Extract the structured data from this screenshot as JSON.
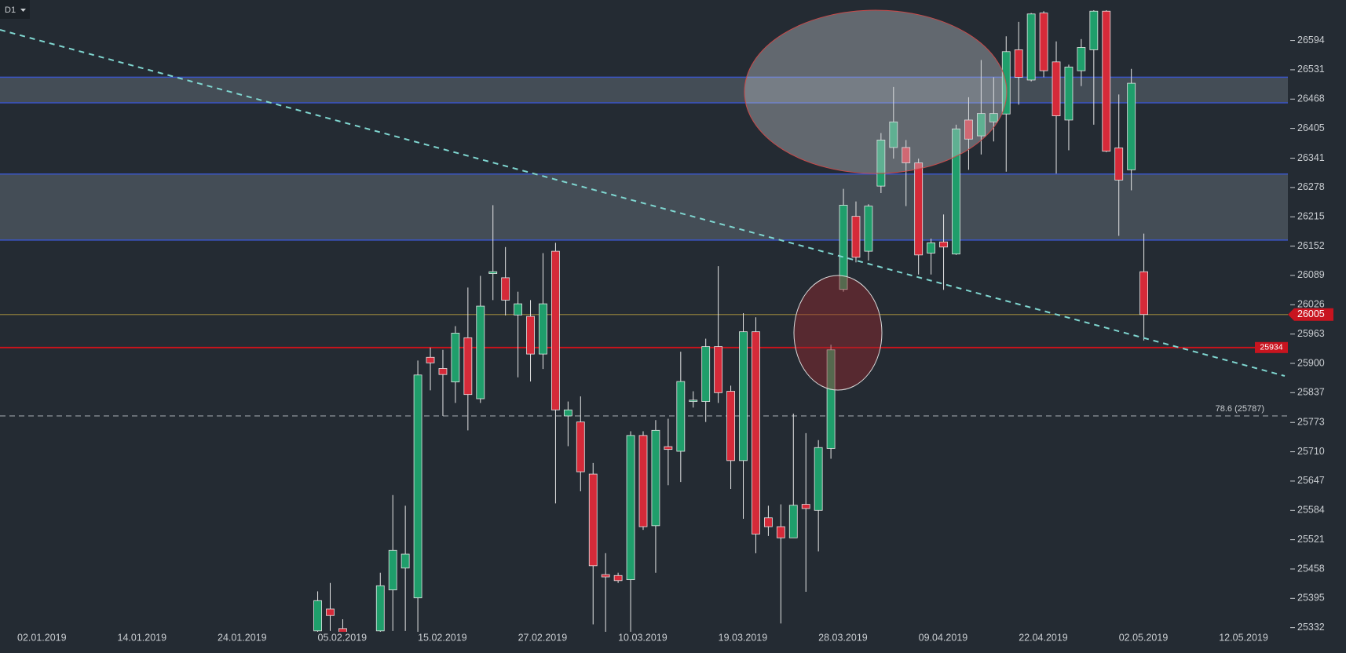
{
  "timeframe": "D1",
  "chart_data": {
    "type": "candlestick",
    "categories": [
      "02.01.2019",
      null,
      null,
      null,
      null,
      null,
      null,
      null,
      "14.01.2019",
      null,
      null,
      null,
      null,
      null,
      null,
      null,
      "24.01.2019",
      null,
      null,
      null,
      null,
      null,
      null,
      null,
      "05.02.2019",
      null,
      null,
      null,
      null,
      null,
      null,
      null,
      "15.02.2019",
      null,
      null,
      null,
      null,
      null,
      null,
      null,
      "27.02.2019",
      null,
      null,
      null,
      null,
      null,
      null,
      null,
      "10.03.2019",
      null,
      null,
      null,
      null,
      null,
      null,
      null,
      "19.03.2019",
      null,
      null,
      null,
      null,
      null,
      null,
      null,
      "28.03.2019",
      null,
      null,
      null,
      null,
      null,
      null,
      null,
      "09.04.2019",
      null,
      null,
      null,
      null,
      null,
      null,
      null,
      "22.04.2019",
      null,
      null,
      null,
      null,
      null,
      null,
      null,
      "02.05.2019",
      null,
      null,
      null,
      null,
      null,
      null,
      null,
      "12.05.2019"
    ],
    "open": [
      null,
      null,
      null,
      null,
      null,
      null,
      null,
      null,
      null,
      null,
      null,
      null,
      null,
      null,
      null,
      null,
      null,
      null,
      null,
      null,
      null,
      null,
      null,
      null,
      25325,
      25372,
      25330,
      null,
      null,
      25325,
      25413,
      25460,
      25396,
      25913,
      25889,
      25860,
      25955,
      25824,
      26093,
      26084,
      26004,
      26001,
      25920,
      26141,
      25787,
      25774,
      25662,
      25446,
      25444,
      25435,
      25745,
      25551,
      25721,
      25711,
      25818,
      25818,
      25936,
      25840,
      25691,
      25968,
      25568,
      25549,
      25525,
      25597,
      25584,
      25717,
      26059,
      26216,
      26141,
      26281,
      26364,
      26364,
      26331,
      26137,
      26161,
      26135,
      26423,
      26389,
      26419,
      26436,
      26574,
      26509,
      26653,
      26548,
      26423,
      26529,
      26574,
      26657,
      26363,
      26316,
      26097,
      null,
      null,
      null,
      null,
      null,
      null
    ],
    "high": [
      null,
      null,
      null,
      null,
      null,
      null,
      null,
      null,
      null,
      null,
      null,
      null,
      null,
      null,
      null,
      null,
      null,
      null,
      null,
      null,
      null,
      null,
      null,
      null,
      25410,
      25428,
      25350,
      null,
      null,
      25450,
      25617,
      25594,
      25906,
      25934,
      25929,
      25980,
      26063,
      26088,
      26240,
      26150,
      26054,
      26036,
      26137,
      26159,
      25818,
      25829,
      25686,
      25492,
      25450,
      25754,
      25754,
      25778,
      25781,
      25925,
      25840,
      25953,
      26109,
      25852,
      26008,
      25999,
      25594,
      25597,
      25792,
      25750,
      25735,
      25940,
      26275,
      26248,
      26242,
      26395,
      26494,
      26380,
      26340,
      26168,
      26220,
      26413,
      26472,
      26552,
      26515,
      26603,
      26634,
      26653,
      26657,
      26592,
      26542,
      26597,
      26659,
      26659,
      26478,
      26533,
      26179,
      null,
      null,
      null,
      null,
      null,
      null
    ],
    "low": [
      null,
      null,
      null,
      null,
      null,
      null,
      null,
      null,
      null,
      null,
      null,
      null,
      null,
      null,
      null,
      null,
      null,
      null,
      null,
      null,
      null,
      null,
      null,
      null,
      25310,
      25325,
      25315,
      null,
      null,
      25310,
      25325,
      25325,
      25318,
      25842,
      25787,
      25815,
      25756,
      25815,
      26036,
      26003,
      25870,
      25861,
      25888,
      25599,
      25722,
      25625,
      25339,
      25320,
      25428,
      25320,
      25542,
      25450,
      25638,
      25645,
      25805,
      25774,
      25815,
      25630,
      25566,
      25492,
      25529,
      25341,
      25525,
      25409,
      25496,
      25695,
      26054,
      26117,
      26121,
      26266,
      26340,
      26238,
      26091,
      26091,
      26058,
      26133,
      26316,
      26349,
      26377,
      26312,
      26456,
      26506,
      26515,
      26308,
      26358,
      26496,
      26413,
      26354,
      26174,
      26272,
      25949,
      null,
      null,
      null,
      null,
      null,
      null
    ],
    "close": [
      null,
      null,
      null,
      null,
      null,
      null,
      null,
      null,
      null,
      null,
      null,
      null,
      null,
      null,
      null,
      null,
      null,
      null,
      null,
      null,
      null,
      null,
      null,
      null,
      25390,
      25358,
      25322,
      null,
      null,
      25422,
      25498,
      25490,
      25875,
      25901,
      25876,
      25965,
      25833,
      26023,
      26097,
      26036,
      26028,
      25920,
      26028,
      25800,
      25800,
      25667,
      25465,
      25441,
      25433,
      25745,
      25549,
      25756,
      25715,
      25861,
      25821,
      25936,
      25837,
      25691,
      25968,
      25533,
      25549,
      25525,
      25595,
      25588,
      25719,
      25929,
      26240,
      26128,
      26238,
      26380,
      26419,
      26331,
      26133,
      26159,
      26150,
      26404,
      26382,
      26437,
      26437,
      26570,
      26515,
      26651,
      26529,
      26432,
      26537,
      26579,
      26657,
      26356,
      26294,
      26502,
      26005,
      null,
      null,
      null,
      null,
      null,
      null
    ],
    "up_color": "#1f9e6b",
    "down_color": "#d52a39",
    "ylim": [
      25323,
      26681
    ],
    "yticks": [
      25332,
      25395,
      25458,
      25521,
      25584,
      25647,
      25710,
      25773,
      25837,
      25900,
      25963,
      26026,
      26089,
      26152,
      26215,
      26278,
      26341,
      26405,
      26468,
      26531,
      26594
    ],
    "zones": [
      {
        "low": 26460,
        "high": 26515
      },
      {
        "low": 26165,
        "high": 26307
      }
    ],
    "zone_color": "#5e6a72",
    "zone_border": "#3a55c8",
    "lines": [
      {
        "value": 26005,
        "color": "#8a7a3c",
        "tag_color": "#c8141f"
      },
      {
        "value": 25934,
        "color": "#d0121b",
        "tag_color": "#c8141f"
      }
    ],
    "fib_level": {
      "value": 25787,
      "label": "78.6 (25787)",
      "color": "#9aa0a6"
    }
  }
}
